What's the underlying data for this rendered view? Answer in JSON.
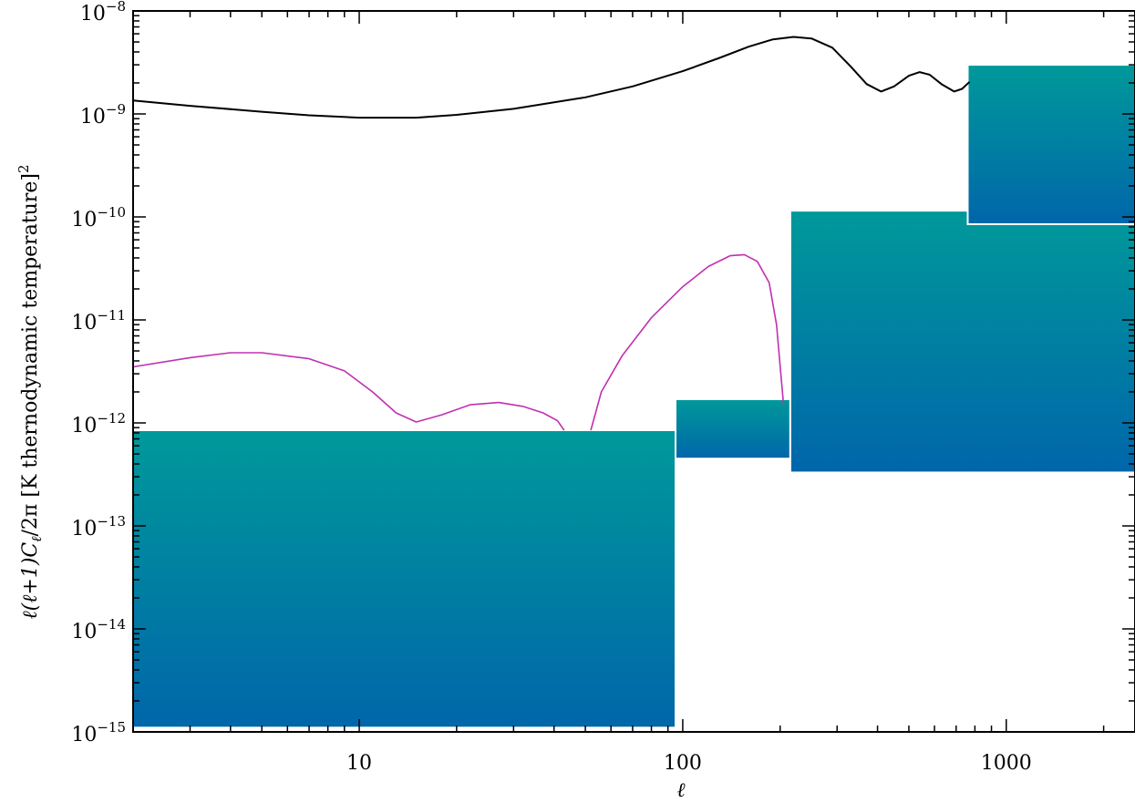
{
  "chart_data": {
    "type": "line",
    "title": "",
    "xlabel": "ℓ",
    "ylabel": "ℓ(ℓ+1)C",
    "ylabel_sub": "ℓ",
    "ylabel_tail": "/2π [K thernodynamic temperature]",
    "ylabel_sup": "2",
    "x_scale": "log",
    "y_scale": "log",
    "xlim": [
      2,
      2500
    ],
    "ylim": [
      1e-15,
      1e-08
    ],
    "grid": false,
    "x_ticks": [
      {
        "value": 10,
        "label": "10"
      },
      {
        "value": 100,
        "label": "100"
      },
      {
        "value": 1000,
        "label": "1000"
      }
    ],
    "y_ticks": [
      {
        "value": 1e-08,
        "base": "10",
        "exp": "−8"
      },
      {
        "value": 1e-09,
        "base": "10",
        "exp": "−9"
      },
      {
        "value": 1e-10,
        "base": "10",
        "exp": "−10"
      },
      {
        "value": 1e-11,
        "base": "10",
        "exp": "−11"
      },
      {
        "value": 1e-12,
        "base": "10",
        "exp": "−12"
      },
      {
        "value": 1e-13,
        "base": "10",
        "exp": "−13"
      },
      {
        "value": 1e-14,
        "base": "10",
        "exp": "−14"
      },
      {
        "value": 1e-15,
        "base": "10",
        "exp": "−15"
      }
    ],
    "series": [
      {
        "color": "#000000",
        "points": [
          [
            2,
            1.35e-09
          ],
          [
            3,
            1.2e-09
          ],
          [
            5,
            1.05e-09
          ],
          [
            7,
            9.7e-10
          ],
          [
            10,
            9.2e-10
          ],
          [
            15,
            9.2e-10
          ],
          [
            20,
            9.8e-10
          ],
          [
            30,
            1.12e-09
          ],
          [
            50,
            1.45e-09
          ],
          [
            70,
            1.85e-09
          ],
          [
            100,
            2.6e-09
          ],
          [
            130,
            3.5e-09
          ],
          [
            160,
            4.5e-09
          ],
          [
            190,
            5.3e-09
          ],
          [
            220,
            5.6e-09
          ],
          [
            250,
            5.4e-09
          ],
          [
            290,
            4.4e-09
          ],
          [
            330,
            2.9e-09
          ],
          [
            370,
            1.95e-09
          ],
          [
            410,
            1.65e-09
          ],
          [
            450,
            1.85e-09
          ],
          [
            500,
            2.35e-09
          ],
          [
            540,
            2.55e-09
          ],
          [
            580,
            2.4e-09
          ],
          [
            630,
            1.95e-09
          ],
          [
            690,
            1.65e-09
          ],
          [
            730,
            1.75e-09
          ],
          [
            770,
            2.05e-09
          ]
        ]
      },
      {
        "color": "#c030b0",
        "points": [
          [
            2,
            3.5e-12
          ],
          [
            3,
            4.3e-12
          ],
          [
            4,
            4.8e-12
          ],
          [
            5,
            4.8e-12
          ],
          [
            7,
            4.2e-12
          ],
          [
            9,
            3.2e-12
          ],
          [
            11,
            2e-12
          ],
          [
            13,
            1.25e-12
          ],
          [
            15,
            1.02e-12
          ],
          [
            18,
            1.2e-12
          ],
          [
            22,
            1.5e-12
          ],
          [
            27,
            1.58e-12
          ],
          [
            32,
            1.45e-12
          ],
          [
            37,
            1.25e-12
          ],
          [
            41,
            1.05e-12
          ],
          [
            43,
            8.5e-13
          ]
        ]
      },
      {
        "color": "#c030b0",
        "points": [
          [
            52,
            8.5e-13
          ],
          [
            56,
            2e-12
          ],
          [
            65,
            4.5e-12
          ],
          [
            80,
            1.05e-11
          ],
          [
            100,
            2.1e-11
          ],
          [
            120,
            3.3e-11
          ],
          [
            140,
            4.2e-11
          ],
          [
            155,
            4.3e-11
          ],
          [
            170,
            3.7e-11
          ],
          [
            185,
            2.3e-11
          ],
          [
            195,
            9e-12
          ],
          [
            201,
            3e-12
          ],
          [
            205,
            1.5e-12
          ]
        ]
      }
    ],
    "regions": [
      {
        "x": [
          2,
          95
        ],
        "y": [
          1.1e-15,
          8.5e-13
        ],
        "color_top": "#00999a",
        "color_bottom": "#0066aa"
      },
      {
        "x": [
          95,
          215
        ],
        "y": [
          4.5e-13,
          1.7e-12
        ],
        "color_top": "#00999a",
        "color_bottom": "#0066aa"
      },
      {
        "x": [
          215,
          2500
        ],
        "y": [
          3.3e-13,
          1.15e-10
        ],
        "color_top": "#00999a",
        "color_bottom": "#0066aa"
      },
      {
        "x": [
          760,
          2500
        ],
        "y": [
          8.5e-11,
          3e-09
        ],
        "color_top": "#00999a",
        "color_bottom": "#0066aa"
      }
    ]
  }
}
